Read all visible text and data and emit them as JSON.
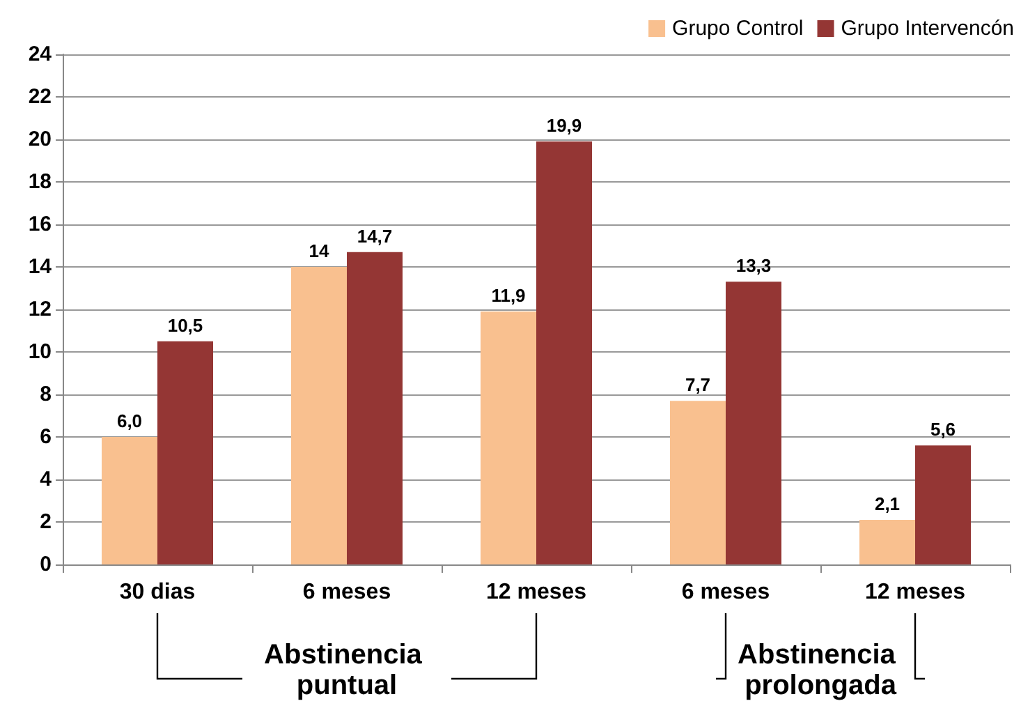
{
  "chart_data": {
    "type": "bar",
    "categories": [
      "30 dias",
      "6 meses",
      "12 meses",
      "6 meses",
      "12 meses"
    ],
    "series": [
      {
        "name": "Grupo Control",
        "color": "#f9c08f",
        "values": [
          6.0,
          14,
          11.9,
          7.7,
          2.1
        ],
        "value_labels": [
          "6,0",
          "14",
          "11,9",
          "7,7",
          "2,1"
        ]
      },
      {
        "name": "Grupo Intervencón",
        "color": "#943634",
        "values": [
          10.5,
          14.7,
          19.9,
          13.3,
          5.6
        ],
        "value_labels": [
          "10,5",
          "14,7",
          "19,9",
          "13,3",
          "5,6"
        ]
      }
    ],
    "ylim": [
      0,
      24
    ],
    "yticks": [
      0,
      2,
      4,
      6,
      8,
      10,
      12,
      14,
      16,
      18,
      20,
      22,
      24
    ],
    "grid": "y",
    "legend": "top right",
    "annotations": [
      "Abstinencia puntual",
      "Abstinencia prolongada"
    ]
  }
}
